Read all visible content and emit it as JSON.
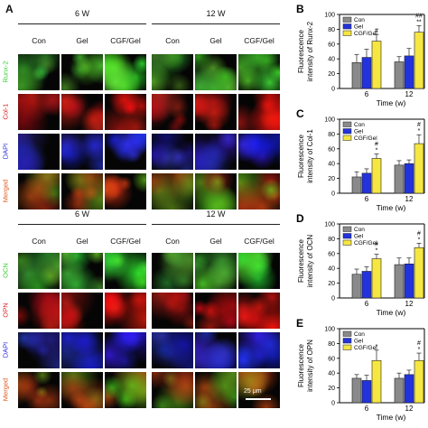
{
  "panelA": {
    "letter": "A",
    "weeks": [
      "6 W",
      "12 W"
    ],
    "groups": [
      "Con",
      "Gel",
      "CGF/Gel"
    ],
    "blocks": [
      {
        "rows": [
          {
            "label": "Runx-2",
            "color": "#2fd12f",
            "kind": "green"
          },
          {
            "label": "Col-1",
            "color": "#e02020",
            "kind": "red"
          },
          {
            "label": "DAPI",
            "color": "#2a2ae0",
            "kind": "blue"
          },
          {
            "label": "Merged",
            "color": "#e05a20",
            "kind": "merged"
          }
        ]
      },
      {
        "rows": [
          {
            "label": "OCN",
            "color": "#2fd12f",
            "kind": "green"
          },
          {
            "label": "OPN",
            "color": "#e02020",
            "kind": "red"
          },
          {
            "label": "DAPI",
            "color": "#2a2ae0",
            "kind": "blue"
          },
          {
            "label": "Merged",
            "color": "#e05a20",
            "kind": "merged"
          }
        ]
      }
    ],
    "scalebar": "25 μm"
  },
  "legend": [
    "Con",
    "Gel",
    "CGF/Gel"
  ],
  "series_colors": {
    "Con": "#8a8a8a",
    "Gel": "#2233dd",
    "CGF/Gel": "#f5e642"
  },
  "chart_data": [
    {
      "letter": "B",
      "type": "bar",
      "ylabel": "Fluorescence\nintensity of Runx-2",
      "xlabel": "Time (w)",
      "categories": [
        "6",
        "12"
      ],
      "ylim": [
        0,
        100
      ],
      "yticks": [
        0,
        20,
        40,
        60,
        80,
        100
      ],
      "series": [
        {
          "name": "Con",
          "values": [
            35,
            36
          ],
          "errors": [
            11,
            7
          ]
        },
        {
          "name": "Gel",
          "values": [
            42,
            44
          ],
          "errors": [
            11,
            10
          ]
        },
        {
          "name": "CGF/Gel",
          "values": [
            64,
            76
          ],
          "errors": [
            9,
            9
          ]
        }
      ],
      "annotations": [
        [
          "#"
        ],
        [
          "##",
          "**"
        ]
      ]
    },
    {
      "letter": "C",
      "type": "bar",
      "ylabel": "Fluorescence\nintensity of Col-1",
      "xlabel": "Time (w)",
      "categories": [
        "6",
        "12"
      ],
      "ylim": [
        0,
        100
      ],
      "yticks": [
        0,
        20,
        40,
        60,
        80,
        100
      ],
      "series": [
        {
          "name": "Con",
          "values": [
            22,
            38
          ],
          "errors": [
            7,
            6
          ]
        },
        {
          "name": "Gel",
          "values": [
            27,
            40
          ],
          "errors": [
            6,
            5
          ]
        },
        {
          "name": "CGF/Gel",
          "values": [
            47,
            67
          ],
          "errors": [
            6,
            12
          ]
        }
      ],
      "annotations": [
        [
          "#",
          "*"
        ],
        [
          "#",
          "*"
        ]
      ]
    },
    {
      "letter": "D",
      "type": "bar",
      "ylabel": "Fluorescence\nintensity of OCN",
      "xlabel": "Time (w)",
      "categories": [
        "6",
        "12"
      ],
      "ylim": [
        0,
        100
      ],
      "yticks": [
        0,
        20,
        40,
        60,
        80,
        100
      ],
      "series": [
        {
          "name": "Con",
          "values": [
            32,
            45
          ],
          "errors": [
            7,
            9
          ]
        },
        {
          "name": "Gel",
          "values": [
            36,
            46
          ],
          "errors": [
            6,
            8
          ]
        },
        {
          "name": "CGF/Gel",
          "values": [
            53,
            68
          ],
          "errors": [
            6,
            6
          ]
        }
      ],
      "annotations": [
        [
          "#",
          "*"
        ],
        [
          "#",
          "*"
        ]
      ]
    },
    {
      "letter": "E",
      "type": "bar",
      "ylabel": "Fluorescence\nintensity of OPN",
      "xlabel": "Time (w)",
      "categories": [
        "6",
        "12"
      ],
      "ylim": [
        0,
        100
      ],
      "yticks": [
        0,
        20,
        40,
        60,
        80,
        100
      ],
      "series": [
        {
          "name": "Con",
          "values": [
            33,
            33
          ],
          "errors": [
            5,
            7
          ]
        },
        {
          "name": "Gel",
          "values": [
            30,
            38
          ],
          "errors": [
            7,
            6
          ]
        },
        {
          "name": "CGF/Gel",
          "values": [
            57,
            57
          ],
          "errors": [
            14,
            10
          ]
        }
      ],
      "annotations": [
        [
          "*"
        ],
        [
          "#",
          "*"
        ]
      ]
    }
  ]
}
